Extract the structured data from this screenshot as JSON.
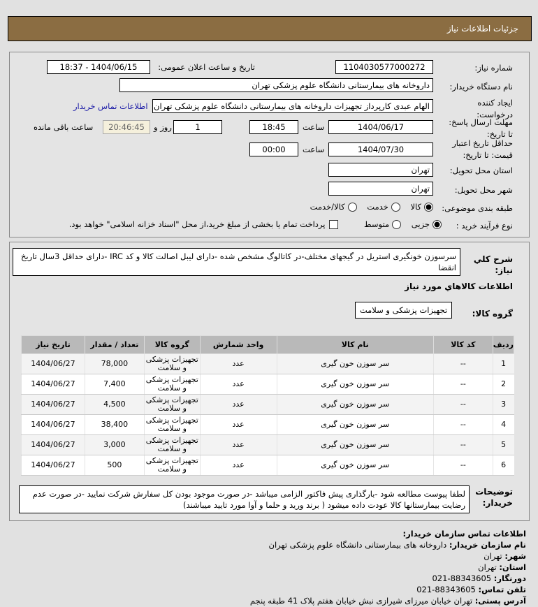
{
  "header": {
    "title": "جزئیات اطلاعات نیاز"
  },
  "form": {
    "need_number_label": "شماره نیاز:",
    "need_number": "1104030577000272",
    "announce_label": "تاریخ و ساعت اعلان عمومی:",
    "announce_value": "1404/06/15 - 18:37",
    "buyer_org_label": "نام دستگاه خریدار:",
    "buyer_org": "داروخانه های بیمارستانی دانشگاه علوم پزشکی تهران",
    "creator_label_1": "ایجاد کننده",
    "creator_label_2": "درخواست:",
    "creator": "الهام عبدی کارپرداز تجهیزات داروخانه های بیمارستانی دانشگاه علوم پزشکی تهران",
    "contact_link": "اطلاعات تماس خریدار",
    "deadline_label_1": "مهلت ارسال پاسخ:",
    "deadline_label_2": "تا تاریخ:",
    "deadline_date": "1404/06/17",
    "time_label": "ساعت",
    "deadline_time": "18:45",
    "days": "1",
    "days_label": "روز و",
    "remaining": "20:46:45",
    "remaining_label": "ساعت باقی مانده",
    "validity_label_1": "حداقل تاریخ اعتبار",
    "validity_label_2": "قیمت: تا تاریخ:",
    "validity_date": "1404/07/30",
    "validity_time": "00:00",
    "province_label": "استان محل تحویل:",
    "province": "تهران",
    "city_label": "شهر محل تحویل:",
    "city": "تهران",
    "category_label": "طبقه بندی موضوعی:",
    "category_options": [
      "کالا",
      "خدمت",
      "کالا/خدمت"
    ],
    "category_selected": "کالا",
    "process_label": "نوع فرآیند خرید :",
    "process_options": [
      "جزیی",
      "متوسط"
    ],
    "process_selected": "جزیی",
    "payment_note": "پرداخت تمام یا بخشی از مبلغ خرید،از محل \"اسناد خزانه اسلامی\" خواهد بود.",
    "payment_checked": false
  },
  "description": {
    "label_1": "شرح کلي",
    "label_2": "نياز:",
    "text": "سرسوزن خونگیری استریل در گیجهای مختلف-در کاتالوگ مشخص شده -دارای لیبل اصالت کالا و کد IRC -دارای حداقل 3سال تاریخ انقضا"
  },
  "goods": {
    "section_title": "اطلاعات کالاهاي مورد نياز",
    "group_label": "گروه کالا:",
    "group": "تجهیزات پزشکی و سلامت",
    "columns": [
      "ردیف",
      "کد کالا",
      "نام کالا",
      "واحد شمارش",
      "گروه کالا",
      "تعداد / مقدار",
      "تاریخ نیاز"
    ],
    "rows": [
      [
        "1",
        "--",
        "سر سوزن خون گیری",
        "عدد",
        "تجهیزات پزشکی و سلامت",
        "78,000",
        "1404/06/27"
      ],
      [
        "2",
        "--",
        "سر سوزن خون گیری",
        "عدد",
        "تجهیزات پزشکی و سلامت",
        "7,400",
        "1404/06/27"
      ],
      [
        "3",
        "--",
        "سر سوزن خون گیری",
        "عدد",
        "تجهیزات پزشکی و سلامت",
        "4,500",
        "1404/06/27"
      ],
      [
        "4",
        "--",
        "سر سوزن خون گیری",
        "عدد",
        "تجهیزات پزشکی و سلامت",
        "38,400",
        "1404/06/27"
      ],
      [
        "5",
        "--",
        "سر سوزن خون گیری",
        "عدد",
        "تجهیزات پزشکی و سلامت",
        "3,000",
        "1404/06/27"
      ],
      [
        "6",
        "--",
        "سر سوزن خون گیری",
        "عدد",
        "تجهیزات پزشکی و سلامت",
        "500",
        "1404/06/27"
      ]
    ]
  },
  "notes": {
    "label_1": "توضیحات",
    "label_2": "خریدار:",
    "text": "لطفا پیوست مطالعه شود -بارگذاری پیش فاکتور الزامی میباشد -در صورت موجود بودن کل سفارش شرکت نمایید -در صورت عدم رضایت بیمارستانها کالا عودت داده میشود ( برند ورید و حلما و آوا مورد تایید میباشند)"
  },
  "contact": {
    "title": "اطلاعات تماس سازمان خریدار:",
    "items": [
      {
        "label": "نام سازمان خریدار:",
        "value": "داروخانه های بیمارستانی دانشگاه علوم پزشکی تهران"
      },
      {
        "label": "شهر:",
        "value": "تهران"
      },
      {
        "label": "استان:",
        "value": "تهران"
      },
      {
        "label": "دورنگار:",
        "value": "88343605-021"
      },
      {
        "label": "تلفن تماس:",
        "value": "88343605-021"
      },
      {
        "label": "آدرس پستی:",
        "value": "تهران خیابان میرزای شیرازی نبش خیابان هفتم پلاک 41 طبقه پنجم"
      }
    ]
  },
  "colors": {
    "header": "#8b6d42",
    "link": "#1a1aa6",
    "table_header": "#b9b9b9"
  }
}
